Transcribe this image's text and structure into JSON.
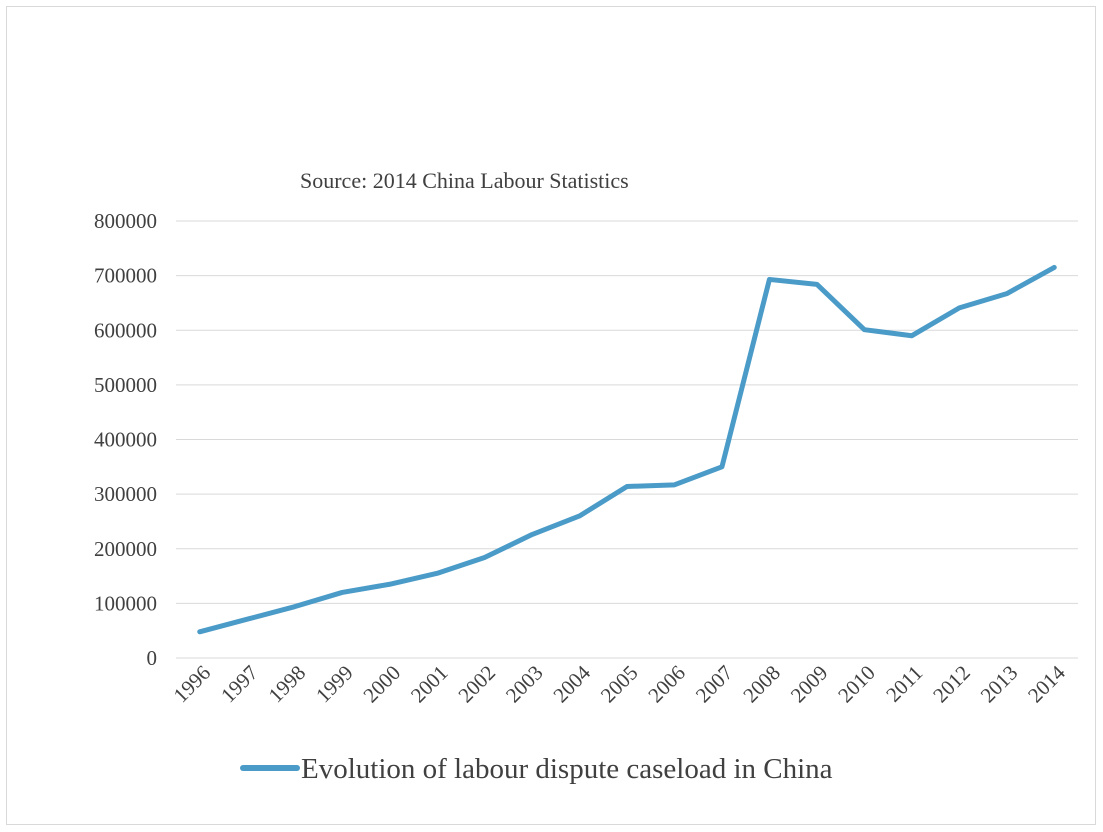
{
  "chart_data": {
    "type": "line",
    "title": "",
    "subtitle": "Source: 2014 China Labour Statistics",
    "xlabel": "",
    "ylabel": "",
    "ylim": [
      0,
      800000
    ],
    "yticks": [
      "0",
      "100000",
      "200000",
      "300000",
      "400000",
      "500000",
      "600000",
      "700000",
      "800000"
    ],
    "categories": [
      "1996",
      "1997",
      "1998",
      "1999",
      "2000",
      "2001",
      "2002",
      "2003",
      "2004",
      "2005",
      "2006",
      "2007",
      "2008",
      "2009",
      "2010",
      "2011",
      "2012",
      "2013",
      "2014"
    ],
    "series": [
      {
        "name": "Evolution of labour dispute caseload in China",
        "color": "#4b9bc8",
        "values": [
          48000,
          71000,
          94000,
          120000,
          135000,
          155000,
          184000,
          226000,
          260000,
          314000,
          317000,
          350000,
          693000,
          684000,
          601000,
          590000,
          641000,
          667000,
          715000
        ]
      }
    ],
    "grid": true,
    "legend_position": "bottom"
  }
}
